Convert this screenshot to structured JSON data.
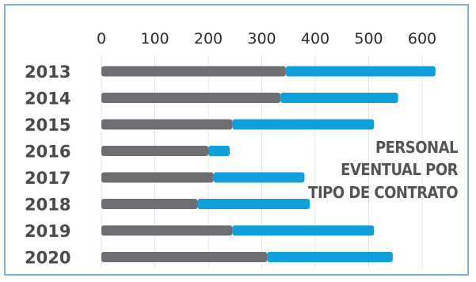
{
  "chart_data": {
    "type": "bar",
    "orientation": "horizontal",
    "stacked": true,
    "title_lines": [
      "PERSONAL",
      "EVENTUAL POR",
      "TIPO DE CONTRATO"
    ],
    "categories": [
      "2013",
      "2014",
      "2015",
      "2016",
      "2017",
      "2018",
      "2019",
      "2020"
    ],
    "series": [
      {
        "color": "#6d6e71",
        "values": [
          345,
          335,
          245,
          200,
          210,
          180,
          245,
          310
        ]
      },
      {
        "color": "#0fa0db",
        "values": [
          280,
          220,
          265,
          40,
          170,
          210,
          265,
          235
        ]
      }
    ],
    "xticks": [
      "0",
      "100",
      "200",
      "300",
      "400",
      "500",
      "600"
    ],
    "xlim": [
      0,
      650
    ],
    "xaxis_position": "top",
    "grid": true
  }
}
